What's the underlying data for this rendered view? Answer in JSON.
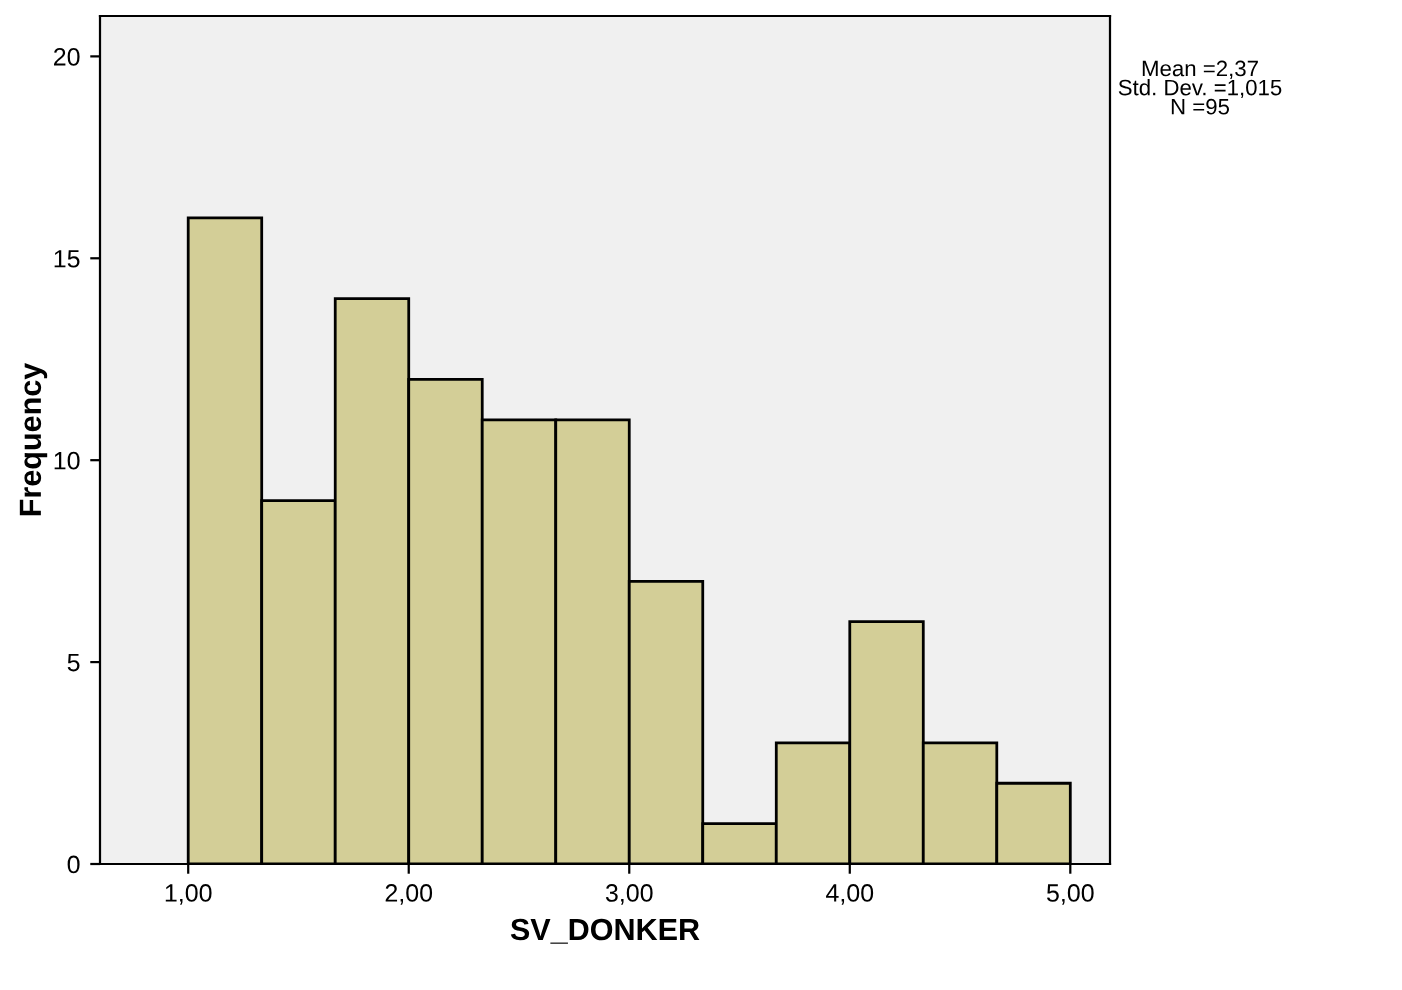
{
  "chart_data": {
    "type": "histogram",
    "xlabel": "SV_DONKER",
    "ylabel": "Frequency",
    "bins": [
      1.0,
      1.3333,
      1.6667,
      2.0,
      2.3333,
      2.6667,
      3.0,
      3.3333,
      3.6667,
      4.0,
      4.3333,
      4.6667,
      5.0
    ],
    "values": [
      16,
      9,
      14,
      12,
      11,
      11,
      7,
      1,
      3,
      6,
      3,
      2
    ],
    "color": "#d3ce97",
    "xlim": [
      0.6,
      5.18
    ],
    "ylim": [
      0,
      21
    ],
    "xticks": [
      {
        "value": 1,
        "label": "1,00"
      },
      {
        "value": 2,
        "label": "2,00"
      },
      {
        "value": 3,
        "label": "3,00"
      },
      {
        "value": 4,
        "label": "4,00"
      },
      {
        "value": 5,
        "label": "5,00"
      }
    ],
    "yticks": [
      0,
      5,
      10,
      15,
      20
    ],
    "grid": false,
    "legend": false,
    "annotations": [
      "Mean =2,37\nStd. Dev. =1,015\nN =95"
    ]
  }
}
